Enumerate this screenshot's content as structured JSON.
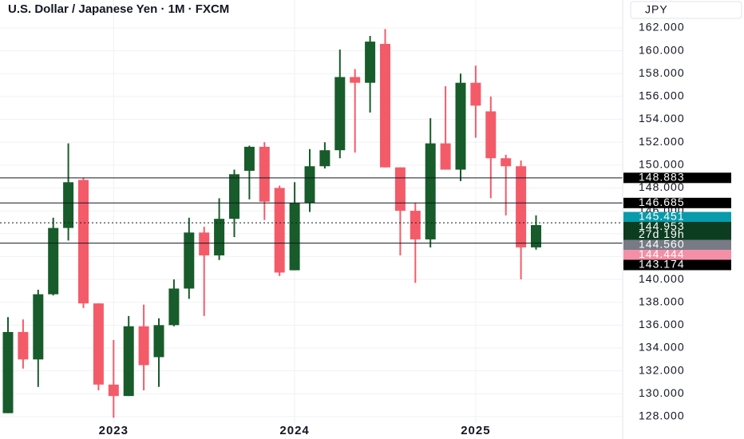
{
  "chart_data": {
    "type": "candlestick",
    "title": "U.S. Dollar / Japanese Yen · 1M · FXCM",
    "currency": "JPY",
    "categories": [
      null,
      null,
      null,
      null,
      null,
      null,
      null,
      "2023",
      null,
      null,
      null,
      null,
      null,
      null,
      null,
      null,
      null,
      null,
      null,
      "2024",
      null,
      null,
      null,
      null,
      null,
      null,
      null,
      null,
      null,
      null,
      null,
      "2025",
      null,
      null,
      null,
      null
    ],
    "open": [
      128.3,
      135.4,
      133.0,
      138.7,
      144.5,
      148.7,
      137.9,
      130.8,
      129.8,
      135.9,
      133.2,
      136.0,
      139.2,
      144.1,
      142.1,
      145.3,
      149.5,
      151.6,
      148.0,
      140.8,
      146.7,
      149.9,
      151.3,
      157.7,
      157.2,
      160.6,
      149.8,
      146.0,
      143.5,
      151.9,
      149.6,
      157.2,
      154.7,
      150.6,
      149.9,
      142.8
    ],
    "high": [
      136.7,
      136.5,
      139.1,
      145.4,
      151.9,
      148.9,
      137.9,
      134.7,
      136.8,
      137.8,
      136.6,
      140.0,
      145.4,
      144.6,
      147.1,
      149.6,
      151.7,
      152.0,
      148.2,
      148.5,
      151.4,
      152.0,
      160.1,
      158.4,
      161.3,
      161.9,
      149.8,
      146.7,
      154.1,
      156.9,
      158.0,
      158.7,
      156.0,
      150.9,
      150.4,
      145.6
    ],
    "low": [
      128.3,
      132.2,
      130.6,
      138.6,
      143.4,
      137.5,
      130.3,
      127.9,
      129.8,
      130.3,
      130.6,
      135.9,
      138.3,
      136.8,
      141.7,
      143.7,
      147.0,
      145.2,
      140.3,
      140.8,
      145.9,
      149.7,
      150.6,
      151.1,
      154.6,
      149.8,
      142.1,
      139.7,
      142.8,
      149.6,
      148.6,
      152.4,
      147.1,
      145.6,
      140.0,
      142.6
    ],
    "close": [
      135.4,
      133.0,
      138.7,
      144.5,
      148.5,
      137.9,
      130.8,
      129.8,
      135.9,
      132.5,
      136.0,
      139.2,
      144.1,
      142.1,
      145.3,
      149.2,
      151.6,
      146.8,
      140.6,
      146.7,
      149.9,
      151.3,
      157.7,
      157.2,
      160.8,
      149.8,
      146.0,
      143.5,
      151.9,
      149.6,
      157.2,
      155.2,
      150.6,
      149.9,
      142.8,
      144.75
    ],
    "up_color": "#175c2a",
    "down_color": "#f45b69",
    "ylim": [
      126.04,
      164.44
    ],
    "yticks": [
      {
        "value": 128,
        "label": "128.000"
      },
      {
        "value": 130,
        "label": "130.000"
      },
      {
        "value": 132,
        "label": "132.000"
      },
      {
        "value": 134,
        "label": "134.000"
      },
      {
        "value": 136,
        "label": "136.000"
      },
      {
        "value": 138,
        "label": "138.000"
      },
      {
        "value": 140,
        "label": "140.000"
      },
      {
        "value": 142,
        "label": "142.000"
      },
      {
        "value": 144,
        "label": "144.000"
      },
      {
        "value": 146,
        "label": "146.000"
      },
      {
        "value": 148,
        "label": "148.000"
      },
      {
        "value": 150,
        "label": "150.000"
      },
      {
        "value": 152,
        "label": "152.000"
      },
      {
        "value": 154,
        "label": "154.000"
      },
      {
        "value": 156,
        "label": "156.000"
      },
      {
        "value": 158,
        "label": "158.000"
      },
      {
        "value": 160,
        "label": "160.000"
      },
      {
        "value": 162,
        "label": "162.000"
      }
    ],
    "grid": true,
    "price_labels": [
      {
        "value": 148.883,
        "color": "#000000",
        "line": "solid"
      },
      {
        "value": 146.685,
        "color": "#000000",
        "line": "solid"
      },
      {
        "value": 145.451,
        "color": "#089bab"
      },
      {
        "value": 144.953,
        "color": "#0d3d21",
        "line": "dotted",
        "countdown": "27d 19h"
      },
      {
        "value": {
          "value": 144.56,
          "label": "144.560"
        },
        "color": "#787b86"
      },
      {
        "value": 144.444,
        "color": "#f38fa7"
      },
      {
        "value": 143.174,
        "color": "#000000",
        "line": "solid"
      }
    ]
  }
}
